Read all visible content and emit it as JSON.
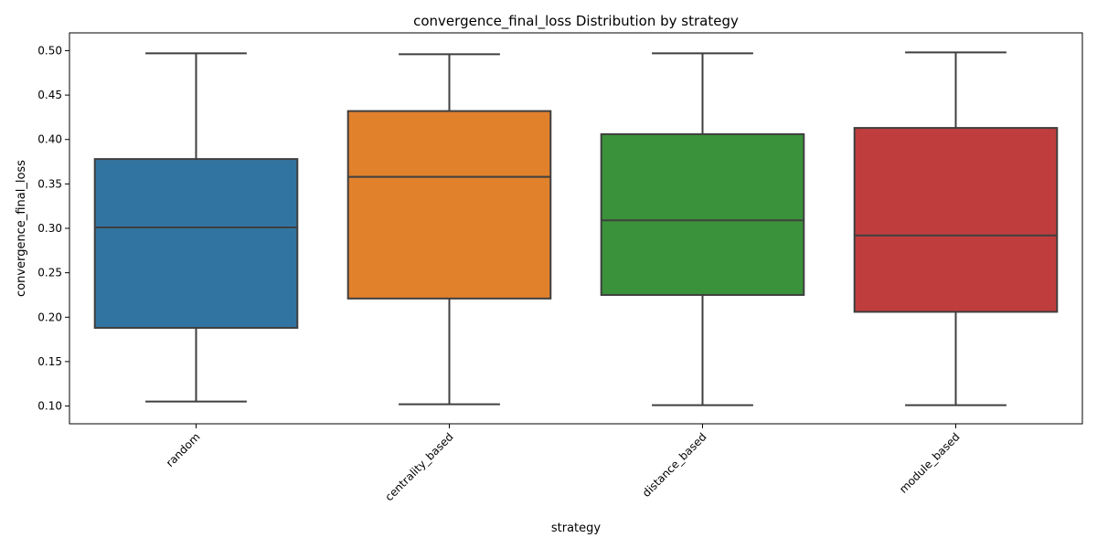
{
  "chart_data": {
    "type": "box",
    "title": "convergence_final_loss Distribution by strategy",
    "xlabel": "strategy",
    "ylabel": "convergence_final_loss",
    "categories": [
      "random",
      "centrality_based",
      "distance_based",
      "module_based"
    ],
    "colors": [
      "#3274a1",
      "#e1812c",
      "#3a923a",
      "#c03d3e"
    ],
    "boxes": [
      {
        "category": "random",
        "whisker_low": 0.105,
        "q1": 0.188,
        "median": 0.301,
        "q3": 0.378,
        "whisker_high": 0.497
      },
      {
        "category": "centrality_based",
        "whisker_low": 0.102,
        "q1": 0.221,
        "median": 0.358,
        "q3": 0.432,
        "whisker_high": 0.496
      },
      {
        "category": "distance_based",
        "whisker_low": 0.101,
        "q1": 0.225,
        "median": 0.309,
        "q3": 0.406,
        "whisker_high": 0.497
      },
      {
        "category": "module_based",
        "whisker_low": 0.101,
        "q1": 0.206,
        "median": 0.292,
        "q3": 0.413,
        "whisker_high": 0.498
      }
    ],
    "yticks": [
      "0.10",
      "0.15",
      "0.20",
      "0.25",
      "0.30",
      "0.35",
      "0.40",
      "0.45",
      "0.50"
    ],
    "ylim": [
      0.08,
      0.52
    ],
    "grid": false,
    "legend": "none"
  }
}
